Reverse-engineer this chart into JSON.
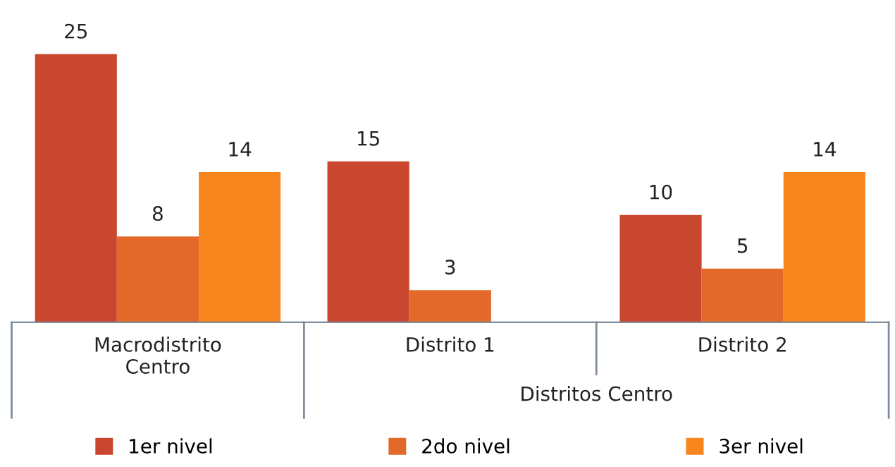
{
  "chart_data": {
    "type": "bar",
    "categories": [
      "Macrodistrito\nCentro",
      "Distrito 1",
      "Distrito 2"
    ],
    "series": [
      {
        "name": "1er nivel",
        "color": "#c9472f",
        "values": [
          25,
          15,
          10
        ]
      },
      {
        "name": "2do nivel",
        "color": "#e2692a",
        "values": [
          8,
          3,
          5
        ]
      },
      {
        "name": "3er nivel",
        "color": "#f7861f",
        "values": [
          14,
          null,
          14
        ]
      }
    ],
    "data_labels": true,
    "legend": "bottom",
    "annotations": [
      "Distritos Centro"
    ]
  }
}
